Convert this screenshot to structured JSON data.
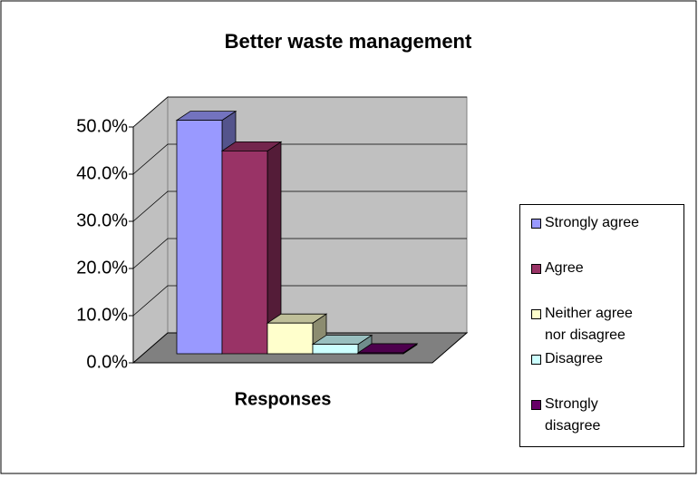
{
  "chart_data": {
    "type": "bar3d",
    "title": "Better waste management",
    "categories": [
      "Responses"
    ],
    "series": [
      {
        "name": "Strongly agree",
        "color": "#9999ff",
        "values": [
          49.5
        ]
      },
      {
        "name": "Agree",
        "color": "#993366",
        "values": [
          43
        ]
      },
      {
        "name": "Neither agree nor disagree",
        "color": "#ffffcc",
        "values": [
          6.5
        ]
      },
      {
        "name": "Disagree",
        "color": "#ccffff",
        "values": [
          2
        ]
      },
      {
        "name": "Strongly disagree",
        "color": "#660066",
        "values": [
          0.2
        ]
      }
    ],
    "ylim": [
      0,
      50
    ],
    "yticks": [
      {
        "value": 0,
        "label": "0.0%"
      },
      {
        "value": 10,
        "label": "10.0%"
      },
      {
        "value": 20,
        "label": "20.0%"
      },
      {
        "value": 30,
        "label": "30.0%"
      },
      {
        "value": 40,
        "label": "40.0%"
      },
      {
        "value": 50,
        "label": "50.0%"
      }
    ],
    "grid": true,
    "legend": "right"
  }
}
